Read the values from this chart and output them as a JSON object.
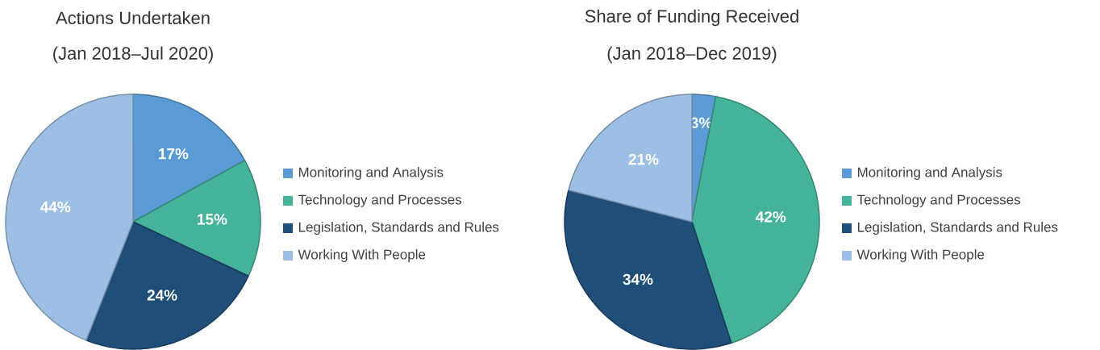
{
  "chart_data": [
    {
      "type": "pie",
      "title": "Actions Undertaken",
      "subtitle": "(Jan 2018–Jul 2020)",
      "categories": [
        "Monitoring and Analysis",
        "Technology and Processes",
        "Legislation, Standards and Rules",
        "Working With People"
      ],
      "values": [
        17,
        15,
        24,
        44
      ],
      "value_labels": [
        "17%",
        "15%",
        "24%",
        "44%"
      ],
      "colors": [
        "#5b9bd5",
        "#45b39a",
        "#1f4e79",
        "#9dbfe3"
      ],
      "legend": "right"
    },
    {
      "type": "pie",
      "title": "Share of Funding Received",
      "subtitle": "(Jan 2018–Dec 2019)",
      "categories": [
        "Monitoring and Analysis",
        "Technology and Processes",
        "Legislation, Standards and Rules",
        "Working With People"
      ],
      "values": [
        3,
        42,
        34,
        21
      ],
      "value_labels": [
        "3%",
        "42%",
        "34%",
        "21%"
      ],
      "colors": [
        "#5b9bd5",
        "#45b39a",
        "#1f4e79",
        "#9dbfe3"
      ],
      "legend": "right"
    }
  ]
}
